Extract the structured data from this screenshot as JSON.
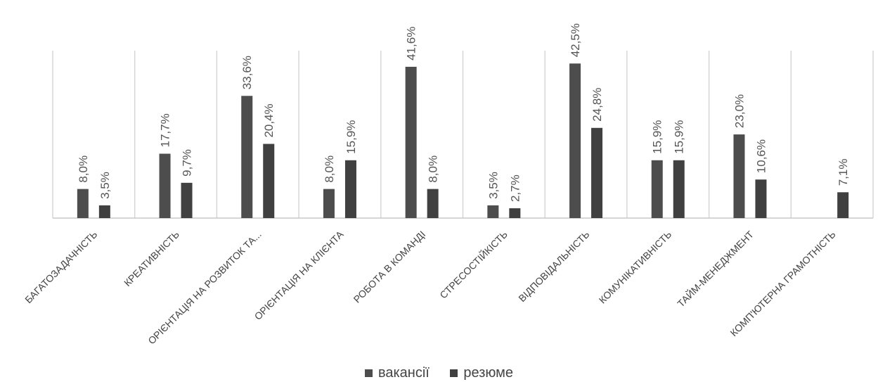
{
  "chart_data": {
    "type": "bar",
    "categories": [
      "БАГАТОЗАДАЧНІСТЬ",
      "КРЕАТИВНІСТЬ",
      "ОРІЄНТАЦІЯ НА РОЗВИТОК ТА...",
      "ОРІЄНТАЦІЯ НА КЛІЄНТА",
      "РОБОТА В КОМАНДІ",
      "СТРЕСОСТІЙКІСТЬ",
      "ВІДПОВІДАЛЬНІСТЬ",
      "КОМУНІКАТИВНІСТЬ",
      "ТАЙМ-МЕНЕДЖМЕНТ",
      "КОМП'ЮТЕРНА ГРАМОТНІСТЬ"
    ],
    "series": [
      {
        "name": "вакансії",
        "color": "#4d4d4d",
        "values": [
          8.0,
          17.7,
          33.6,
          8.0,
          41.6,
          3.5,
          42.5,
          15.9,
          23.0,
          0
        ],
        "labels": [
          "8,0%",
          "17,7%",
          "33,6%",
          "8,0%",
          "41,6%",
          "3,5%",
          "42,5%",
          "15,9%",
          "23,0%",
          ""
        ]
      },
      {
        "name": "резюме",
        "color": "#404040",
        "values": [
          3.5,
          9.7,
          20.4,
          15.9,
          8.0,
          2.7,
          24.8,
          15.9,
          10.6,
          7.1
        ],
        "labels": [
          "3,5%",
          "9,7%",
          "20,4%",
          "15,9%",
          "8,0%",
          "2,7%",
          "24,8%",
          "15,9%",
          "10,6%",
          "7,1%"
        ]
      }
    ],
    "ylim": [
      0,
      45
    ],
    "grid": true,
    "legend_position": "bottom"
  }
}
